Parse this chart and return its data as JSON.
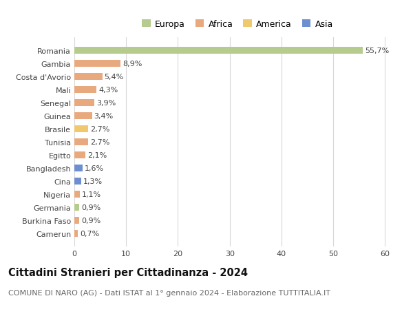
{
  "categories": [
    "Romania",
    "Gambia",
    "Costa d'Avorio",
    "Mali",
    "Senegal",
    "Guinea",
    "Brasile",
    "Tunisia",
    "Egitto",
    "Bangladesh",
    "Cina",
    "Nigeria",
    "Germania",
    "Burkina Faso",
    "Camerun"
  ],
  "values": [
    55.7,
    8.9,
    5.4,
    4.3,
    3.9,
    3.4,
    2.7,
    2.7,
    2.1,
    1.6,
    1.3,
    1.1,
    0.9,
    0.9,
    0.7
  ],
  "labels": [
    "55,7%",
    "8,9%",
    "5,4%",
    "4,3%",
    "3,9%",
    "3,4%",
    "2,7%",
    "2,7%",
    "2,1%",
    "1,6%",
    "1,3%",
    "1,1%",
    "0,9%",
    "0,9%",
    "0,7%"
  ],
  "colors": [
    "#b5cc8e",
    "#e8a97e",
    "#e8a97e",
    "#e8a97e",
    "#e8a97e",
    "#e8a97e",
    "#f0c96e",
    "#e8a97e",
    "#e8a97e",
    "#6e8fcf",
    "#6e8fcf",
    "#e8a97e",
    "#b5cc8e",
    "#e8a97e",
    "#e8a97e"
  ],
  "legend_labels": [
    "Europa",
    "Africa",
    "America",
    "Asia"
  ],
  "legend_colors": [
    "#b5cc8e",
    "#e8a97e",
    "#f0c96e",
    "#6e8fcf"
  ],
  "title": "Cittadini Stranieri per Cittadinanza - 2024",
  "subtitle": "COMUNE DI NARO (AG) - Dati ISTAT al 1° gennaio 2024 - Elaborazione TUTTITALIA.IT",
  "xlim": [
    0,
    63
  ],
  "xticks": [
    0,
    10,
    20,
    30,
    40,
    50,
    60
  ],
  "background_color": "#ffffff",
  "grid_color": "#d8d8d8",
  "bar_height": 0.55,
  "title_fontsize": 10.5,
  "subtitle_fontsize": 8,
  "tick_fontsize": 8,
  "label_fontsize": 8,
  "legend_fontsize": 9
}
